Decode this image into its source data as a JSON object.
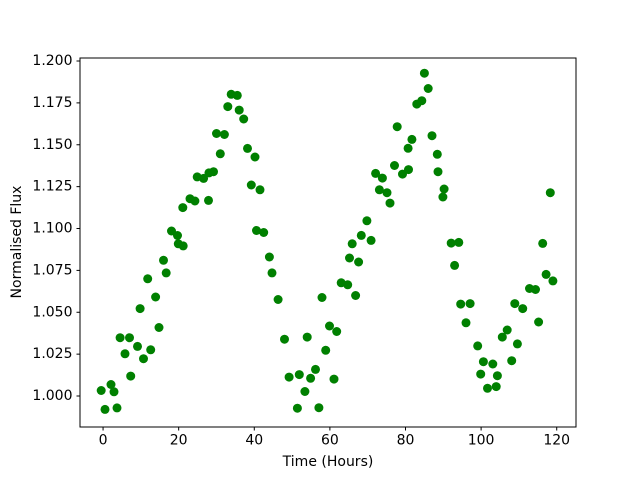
{
  "chart_data": {
    "type": "scatter",
    "title": "",
    "xlabel": "Time (Hours)",
    "ylabel": "Normalised Flux",
    "marker_color": "#008000",
    "axis_color": "#000000",
    "background_color": "#ffffff",
    "grid": false,
    "legend": null,
    "xlim": [
      -6.1,
      125.1
    ],
    "ylim": [
      0.9815,
      1.2018
    ],
    "x_ticks": [
      0,
      20,
      40,
      60,
      80,
      100,
      120
    ],
    "x_tick_labels": [
      "0",
      "20",
      "40",
      "60",
      "80",
      "100",
      "120"
    ],
    "y_ticks": [
      1.0,
      1.025,
      1.05,
      1.075,
      1.1,
      1.125,
      1.15,
      1.175,
      1.2
    ],
    "y_tick_labels": [
      "1.000",
      "1.025",
      "1.050",
      "1.075",
      "1.100",
      "1.125",
      "1.150",
      "1.175",
      "1.200"
    ],
    "points": [
      [
        -0.5,
        1.0033
      ],
      [
        0.5,
        0.992
      ],
      [
        2.1,
        1.0069
      ],
      [
        2.9,
        1.0025
      ],
      [
        3.7,
        0.9929
      ],
      [
        4.5,
        1.0348
      ],
      [
        5.8,
        1.0252
      ],
      [
        7.0,
        1.0348
      ],
      [
        7.3,
        1.0119
      ],
      [
        9.1,
        1.0296
      ],
      [
        9.8,
        1.0522
      ],
      [
        10.7,
        1.0223
      ],
      [
        11.8,
        1.07
      ],
      [
        12.6,
        1.0276
      ],
      [
        13.9,
        1.0591
      ],
      [
        14.8,
        1.0409
      ],
      [
        16.0,
        1.081
      ],
      [
        16.7,
        1.0735
      ],
      [
        18.1,
        1.0985
      ],
      [
        19.7,
        1.0958
      ],
      [
        19.9,
        1.0909
      ],
      [
        21.2,
        1.0896
      ],
      [
        21.1,
        1.1125
      ],
      [
        23.0,
        1.1178
      ],
      [
        24.3,
        1.1164
      ],
      [
        24.9,
        1.1308
      ],
      [
        26.6,
        1.1299
      ],
      [
        27.9,
        1.1168
      ],
      [
        28.0,
        1.1332
      ],
      [
        29.2,
        1.1339
      ],
      [
        30.0,
        1.1567
      ],
      [
        31.0,
        1.1446
      ],
      [
        32.1,
        1.1561
      ],
      [
        33.0,
        1.1728
      ],
      [
        33.9,
        1.1801
      ],
      [
        35.5,
        1.1795
      ],
      [
        36.0,
        1.1707
      ],
      [
        37.2,
        1.1654
      ],
      [
        38.2,
        1.1478
      ],
      [
        39.2,
        1.126
      ],
      [
        40.2,
        1.1427
      ],
      [
        41.5,
        1.1231
      ],
      [
        40.6,
        1.0988
      ],
      [
        42.5,
        1.0976
      ],
      [
        44.0,
        1.083
      ],
      [
        44.7,
        1.0735
      ],
      [
        46.3,
        1.0576
      ],
      [
        48.0,
        1.0339
      ],
      [
        49.2,
        1.0113
      ],
      [
        51.4,
        0.9927
      ],
      [
        51.9,
        1.0128
      ],
      [
        53.4,
        1.0027
      ],
      [
        54.0,
        1.0352
      ],
      [
        54.9,
        1.0106
      ],
      [
        56.2,
        1.0159
      ],
      [
        57.1,
        0.993
      ],
      [
        57.9,
        1.0588
      ],
      [
        58.9,
        1.0273
      ],
      [
        59.9,
        1.0418
      ],
      [
        61.1,
        1.0101
      ],
      [
        61.8,
        1.0385
      ],
      [
        63.0,
        1.0676
      ],
      [
        64.7,
        1.0664
      ],
      [
        65.2,
        1.0824
      ],
      [
        65.9,
        1.0909
      ],
      [
        66.8,
        1.06
      ],
      [
        67.6,
        1.08
      ],
      [
        68.3,
        1.0959
      ],
      [
        69.8,
        1.1046
      ],
      [
        70.9,
        1.0929
      ],
      [
        72.1,
        1.1329
      ],
      [
        73.1,
        1.1231
      ],
      [
        73.9,
        1.1301
      ],
      [
        75.1,
        1.1214
      ],
      [
        75.9,
        1.1152
      ],
      [
        77.1,
        1.1376
      ],
      [
        77.8,
        1.1608
      ],
      [
        79.2,
        1.1325
      ],
      [
        80.7,
        1.1479
      ],
      [
        80.8,
        1.1352
      ],
      [
        81.7,
        1.1532
      ],
      [
        83.0,
        1.1743
      ],
      [
        84.3,
        1.1763
      ],
      [
        85.0,
        1.1927
      ],
      [
        86.0,
        1.1836
      ],
      [
        87.0,
        1.1554
      ],
      [
        88.4,
        1.1443
      ],
      [
        88.6,
        1.1339
      ],
      [
        89.9,
        1.1188
      ],
      [
        90.2,
        1.1236
      ],
      [
        92.1,
        1.0913
      ],
      [
        93.0,
        1.078
      ],
      [
        94.1,
        1.0917
      ],
      [
        94.6,
        1.0549
      ],
      [
        96.0,
        1.0437
      ],
      [
        97.1,
        1.0552
      ],
      [
        99.1,
        1.0299
      ],
      [
        99.9,
        1.0131
      ],
      [
        100.6,
        1.0205
      ],
      [
        101.7,
        1.0046
      ],
      [
        103.1,
        1.0191
      ],
      [
        104.0,
        1.0056
      ],
      [
        104.3,
        1.0121
      ],
      [
        105.6,
        1.0352
      ],
      [
        106.9,
        1.0394
      ],
      [
        108.1,
        1.0211
      ],
      [
        108.9,
        1.0552
      ],
      [
        109.6,
        1.0311
      ],
      [
        111.0,
        1.0522
      ],
      [
        112.8,
        1.0642
      ],
      [
        114.4,
        1.0636
      ],
      [
        115.2,
        1.0442
      ],
      [
        116.3,
        1.0911
      ],
      [
        117.2,
        1.0726
      ],
      [
        118.3,
        1.1214
      ],
      [
        119.0,
        1.0687
      ]
    ]
  }
}
